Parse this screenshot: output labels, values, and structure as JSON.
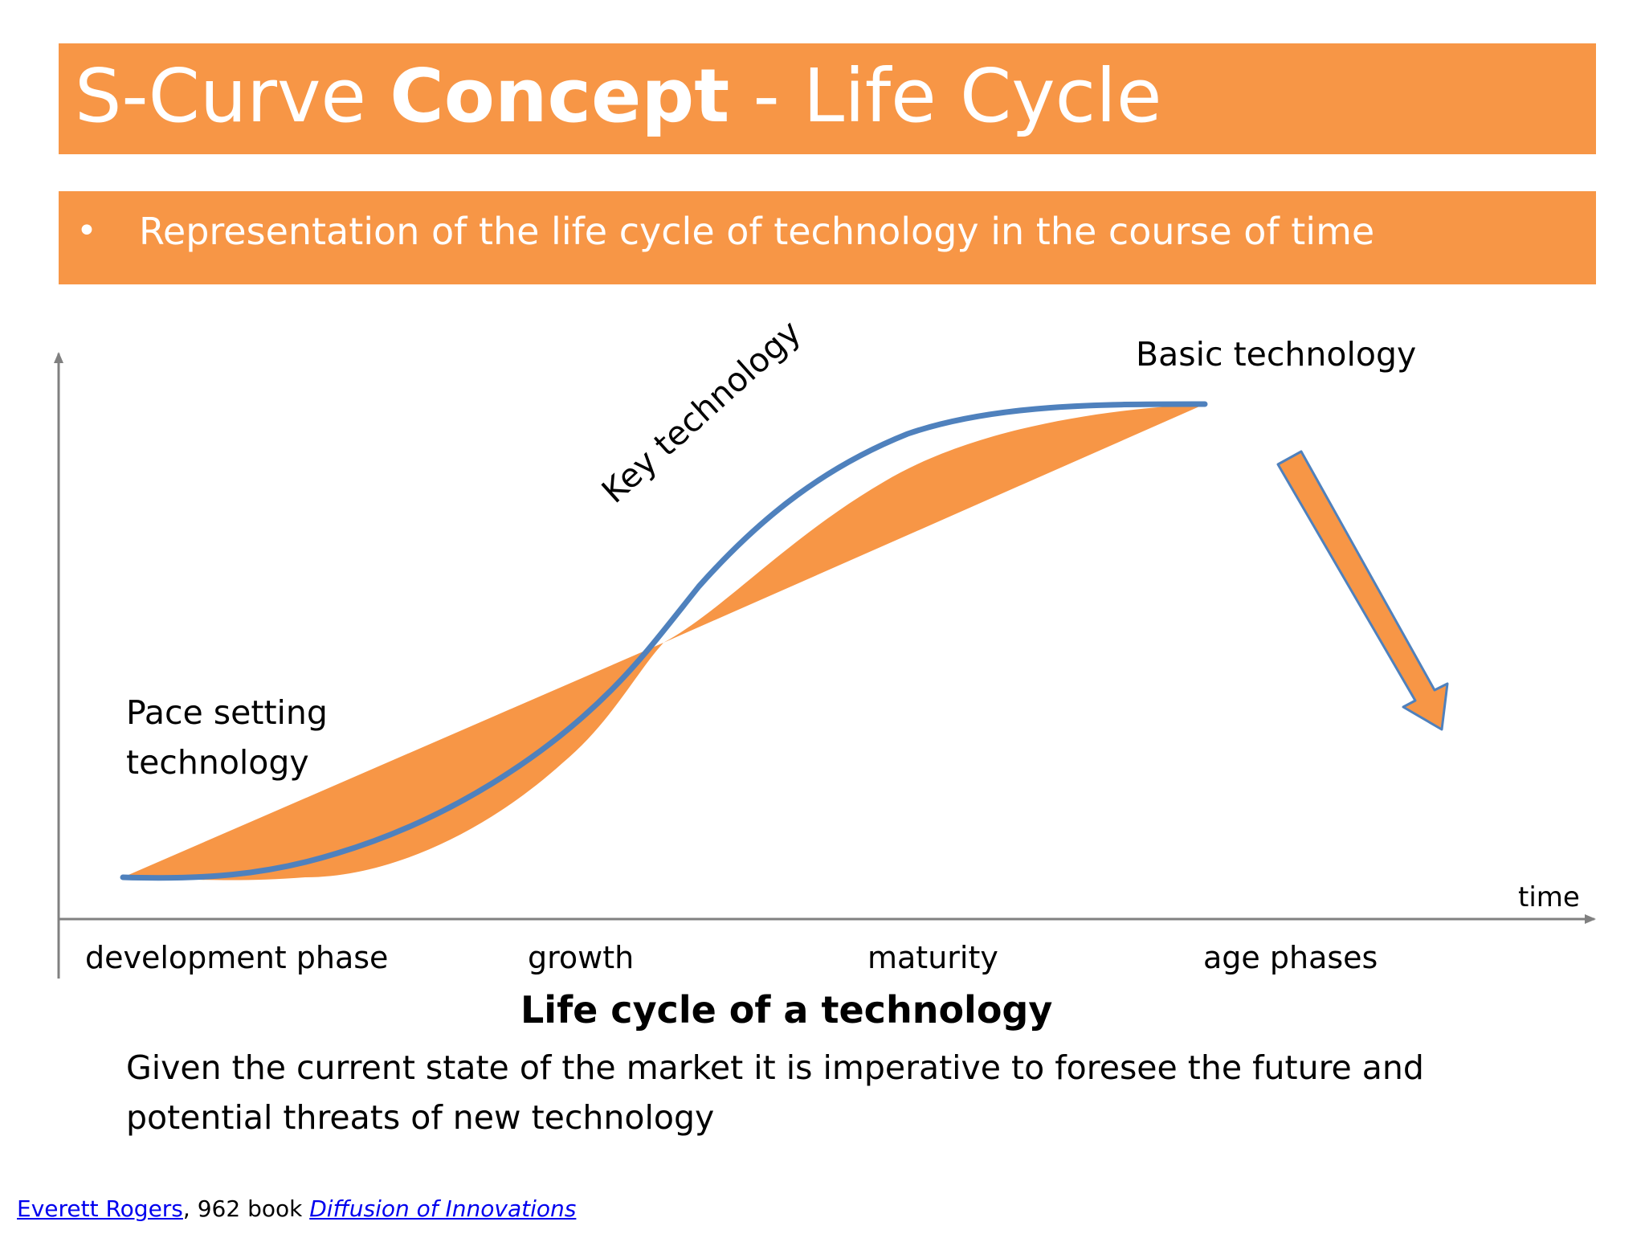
{
  "slide": {
    "title_prefix": "S-Curve ",
    "title_bold": "Concept",
    "title_suffix": " - Life Cycle",
    "bullet": "•",
    "subtitle": "Representation of the life cycle of technology in the course of time"
  },
  "diagram": {
    "labels": {
      "pace_setting_1": "Pace setting",
      "pace_setting_2": "technology",
      "key": "Key technology",
      "basic": "Basic technology",
      "axis_x": "time"
    },
    "phases": [
      "development phase",
      "growth",
      "maturity",
      "age phases"
    ],
    "caption": "Life cycle of a technology",
    "colors": {
      "fill": "#f79646",
      "curve": "#4f81bd",
      "axis": "#808080"
    }
  },
  "note": "Given the current state of the market it is imperative to foresee the future and potential threats of new technology",
  "footer": {
    "author": "Everett Rogers",
    "separator": ", ",
    "mid": "962 book ",
    "book": "Diffusion of Innovations"
  }
}
